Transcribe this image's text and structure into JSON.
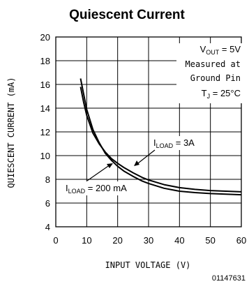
{
  "chart_data": {
    "type": "line",
    "title": "Quiescent Current",
    "xlabel": "INPUT VOLTAGE (V)",
    "ylabel": "QUIESCENT CURRENT (mA)",
    "xlim": [
      0,
      60
    ],
    "ylim": [
      4,
      20
    ],
    "xticks": [
      "0",
      "10",
      "20",
      "30",
      "40",
      "50",
      "60"
    ],
    "yticks": [
      "4",
      "6",
      "8",
      "10",
      "12",
      "14",
      "16",
      "18",
      "20"
    ],
    "grid": true,
    "series": [
      {
        "x": [
          8,
          9,
          10,
          12,
          14,
          16,
          18,
          20,
          22,
          25,
          28,
          30,
          35,
          40,
          45,
          50,
          55,
          60
        ],
        "y": [
          15.8,
          14.5,
          13.4,
          11.9,
          11.0,
          10.3,
          9.75,
          9.35,
          9.0,
          8.55,
          8.15,
          7.95,
          7.55,
          7.3,
          7.15,
          7.05,
          7.0,
          6.95
        ]
      },
      {
        "x": [
          8,
          9,
          10,
          12,
          14,
          16,
          18,
          20,
          22,
          25,
          28,
          30,
          35,
          40,
          45,
          50,
          55,
          60
        ],
        "y": [
          16.5,
          15.2,
          13.9,
          12.2,
          11.1,
          10.2,
          9.6,
          9.1,
          8.7,
          8.25,
          7.85,
          7.65,
          7.25,
          7.0,
          6.88,
          6.8,
          6.75,
          6.7
        ]
      }
    ],
    "annotations": {
      "vout": [
        "V",
        "OUT",
        " = 5V"
      ],
      "measured": "Measured at",
      "ground": "Ground Pin",
      "tj": [
        "T",
        "J",
        " = 25°C"
      ],
      "load3": [
        "I",
        "LOAD",
        " = 3A"
      ],
      "load200": [
        "I",
        "LOAD",
        " = 200 mA"
      ]
    },
    "figure_code": "01147631"
  }
}
